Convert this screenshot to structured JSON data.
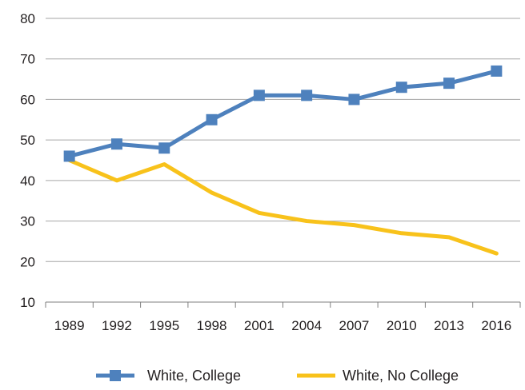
{
  "chart_data": {
    "type": "line",
    "title": "",
    "xlabel": "",
    "ylabel": "",
    "categories": [
      "1989",
      "1992",
      "1995",
      "1998",
      "2001",
      "2004",
      "2007",
      "2010",
      "2013",
      "2016"
    ],
    "ylim": [
      10,
      80
    ],
    "yticks": [
      10,
      20,
      30,
      40,
      50,
      60,
      70,
      80
    ],
    "grid": "horizontal",
    "legend": "bottom",
    "series": [
      {
        "name": "White, College",
        "color": "#4e81bd",
        "marker": "square",
        "values": [
          46,
          49,
          48,
          55,
          61,
          61,
          60,
          63,
          64,
          67
        ]
      },
      {
        "name": "White, No College",
        "color": "#f8c21b",
        "marker": "none",
        "values": [
          45,
          40,
          44,
          37,
          32,
          30,
          29,
          27,
          26,
          22
        ]
      }
    ]
  }
}
